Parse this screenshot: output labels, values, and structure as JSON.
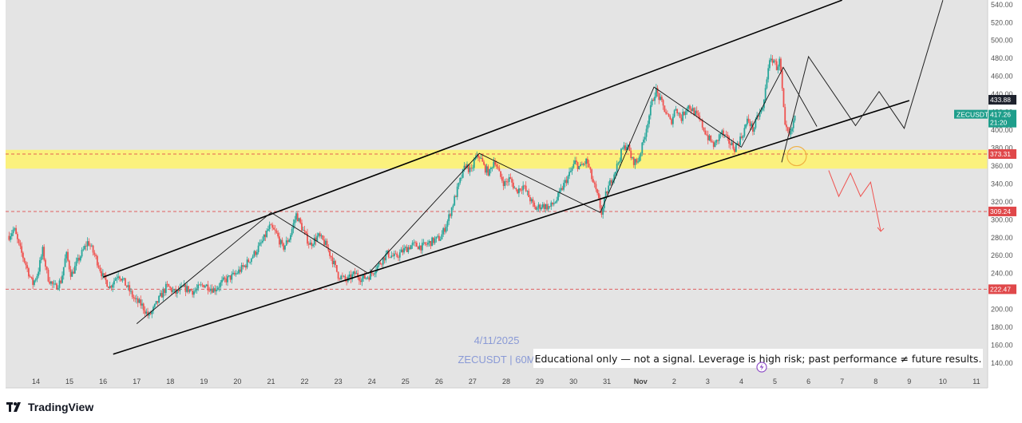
{
  "chart_data": {
    "type": "candlestick",
    "symbol": "ZECUSDT",
    "watermark": {
      "date": "4/11/2025",
      "symbol_interval": "ZECUSDT | 60M"
    },
    "disclaimer": "Educational only — not a signal. Leverage is high risk; past performance ≠ future results.",
    "x_ticks": [
      "14",
      "15",
      "16",
      "17",
      "18",
      "19",
      "20",
      "21",
      "22",
      "23",
      "24",
      "25",
      "26",
      "27",
      "28",
      "29",
      "30",
      "31",
      "Nov",
      "2",
      "3",
      "4",
      "5",
      "6",
      "7",
      "8",
      "9",
      "10",
      "11"
    ],
    "y_ticks": [
      "140.00",
      "160.00",
      "180.00",
      "200.00",
      "220.00",
      "240.00",
      "260.00",
      "280.00",
      "300.00",
      "320.00",
      "340.00",
      "360.00",
      "380.00",
      "400.00",
      "420.00",
      "440.00",
      "460.00",
      "480.00",
      "500.00",
      "520.00",
      "540.00"
    ],
    "ylim": [
      125,
      545
    ],
    "x_range_days": [
      13.2,
      42.2
    ],
    "price_series": [
      {
        "d": 13.2,
        "p": 282
      },
      {
        "d": 13.35,
        "p": 290
      },
      {
        "d": 13.5,
        "p": 270
      },
      {
        "d": 13.7,
        "p": 250
      },
      {
        "d": 13.9,
        "p": 228
      },
      {
        "d": 14.05,
        "p": 240
      },
      {
        "d": 14.2,
        "p": 266
      },
      {
        "d": 14.35,
        "p": 236
      },
      {
        "d": 14.55,
        "p": 224
      },
      {
        "d": 14.75,
        "p": 232
      },
      {
        "d": 14.9,
        "p": 262
      },
      {
        "d": 15.05,
        "p": 238
      },
      {
        "d": 15.3,
        "p": 258
      },
      {
        "d": 15.55,
        "p": 276
      },
      {
        "d": 15.8,
        "p": 256
      },
      {
        "d": 16.0,
        "p": 236
      },
      {
        "d": 16.2,
        "p": 225
      },
      {
        "d": 16.45,
        "p": 240
      },
      {
        "d": 16.7,
        "p": 226
      },
      {
        "d": 16.95,
        "p": 210
      },
      {
        "d": 17.15,
        "p": 205
      },
      {
        "d": 17.35,
        "p": 192
      },
      {
        "d": 17.5,
        "p": 200
      },
      {
        "d": 17.7,
        "p": 214
      },
      {
        "d": 17.9,
        "p": 226
      },
      {
        "d": 18.15,
        "p": 218
      },
      {
        "d": 18.4,
        "p": 224
      },
      {
        "d": 18.7,
        "p": 220
      },
      {
        "d": 19.0,
        "p": 228
      },
      {
        "d": 19.3,
        "p": 222
      },
      {
        "d": 19.6,
        "p": 232
      },
      {
        "d": 19.9,
        "p": 238
      },
      {
        "d": 20.2,
        "p": 248
      },
      {
        "d": 20.5,
        "p": 262
      },
      {
        "d": 20.75,
        "p": 276
      },
      {
        "d": 20.95,
        "p": 292
      },
      {
        "d": 21.15,
        "p": 285
      },
      {
        "d": 21.35,
        "p": 268
      },
      {
        "d": 21.55,
        "p": 280
      },
      {
        "d": 21.75,
        "p": 306
      },
      {
        "d": 21.95,
        "p": 288
      },
      {
        "d": 22.15,
        "p": 272
      },
      {
        "d": 22.4,
        "p": 282
      },
      {
        "d": 22.6,
        "p": 274
      },
      {
        "d": 22.8,
        "p": 258
      },
      {
        "d": 23.0,
        "p": 238
      },
      {
        "d": 23.25,
        "p": 232
      },
      {
        "d": 23.5,
        "p": 240
      },
      {
        "d": 23.7,
        "p": 234
      },
      {
        "d": 23.95,
        "p": 238
      },
      {
        "d": 24.2,
        "p": 250
      },
      {
        "d": 24.45,
        "p": 262
      },
      {
        "d": 24.7,
        "p": 258
      },
      {
        "d": 24.95,
        "p": 266
      },
      {
        "d": 25.2,
        "p": 272
      },
      {
        "d": 25.5,
        "p": 270
      },
      {
        "d": 25.8,
        "p": 276
      },
      {
        "d": 26.05,
        "p": 280
      },
      {
        "d": 26.25,
        "p": 298
      },
      {
        "d": 26.45,
        "p": 322
      },
      {
        "d": 26.65,
        "p": 346
      },
      {
        "d": 26.8,
        "p": 362
      },
      {
        "d": 26.95,
        "p": 352
      },
      {
        "d": 27.05,
        "p": 366
      },
      {
        "d": 27.2,
        "p": 372
      },
      {
        "d": 27.35,
        "p": 358
      },
      {
        "d": 27.5,
        "p": 352
      },
      {
        "d": 27.65,
        "p": 368
      },
      {
        "d": 27.8,
        "p": 350
      },
      {
        "d": 27.95,
        "p": 340
      },
      {
        "d": 28.1,
        "p": 346
      },
      {
        "d": 28.3,
        "p": 332
      },
      {
        "d": 28.5,
        "p": 338
      },
      {
        "d": 28.7,
        "p": 324
      },
      {
        "d": 28.85,
        "p": 312
      },
      {
        "d": 29.05,
        "p": 316
      },
      {
        "d": 29.3,
        "p": 314
      },
      {
        "d": 29.5,
        "p": 322
      },
      {
        "d": 29.7,
        "p": 338
      },
      {
        "d": 29.9,
        "p": 352
      },
      {
        "d": 30.05,
        "p": 364
      },
      {
        "d": 30.2,
        "p": 358
      },
      {
        "d": 30.4,
        "p": 366
      },
      {
        "d": 30.55,
        "p": 346
      },
      {
        "d": 30.75,
        "p": 322
      },
      {
        "d": 30.85,
        "p": 306
      },
      {
        "d": 30.95,
        "p": 326
      },
      {
        "d": 31.1,
        "p": 342
      },
      {
        "d": 31.3,
        "p": 360
      },
      {
        "d": 31.45,
        "p": 378
      },
      {
        "d": 31.6,
        "p": 384
      },
      {
        "d": 31.75,
        "p": 366
      },
      {
        "d": 31.9,
        "p": 364
      },
      {
        "d": 32.05,
        "p": 382
      },
      {
        "d": 32.2,
        "p": 408
      },
      {
        "d": 32.35,
        "p": 432
      },
      {
        "d": 32.45,
        "p": 445
      },
      {
        "d": 32.6,
        "p": 432
      },
      {
        "d": 32.75,
        "p": 420
      },
      {
        "d": 32.9,
        "p": 408
      },
      {
        "d": 33.05,
        "p": 426
      },
      {
        "d": 33.2,
        "p": 412
      },
      {
        "d": 33.4,
        "p": 428
      },
      {
        "d": 33.6,
        "p": 420
      },
      {
        "d": 33.8,
        "p": 408
      },
      {
        "d": 34.0,
        "p": 392
      },
      {
        "d": 34.2,
        "p": 382
      },
      {
        "d": 34.4,
        "p": 398
      },
      {
        "d": 34.6,
        "p": 388
      },
      {
        "d": 34.8,
        "p": 380
      },
      {
        "d": 35.0,
        "p": 392
      },
      {
        "d": 35.2,
        "p": 412
      },
      {
        "d": 35.35,
        "p": 400
      },
      {
        "d": 35.5,
        "p": 416
      },
      {
        "d": 35.65,
        "p": 424
      },
      {
        "d": 35.8,
        "p": 472
      },
      {
        "d": 35.95,
        "p": 480
      },
      {
        "d": 36.05,
        "p": 470
      },
      {
        "d": 36.15,
        "p": 478
      },
      {
        "d": 36.3,
        "p": 402
      },
      {
        "d": 36.45,
        "p": 392
      },
      {
        "d": 36.6,
        "p": 417
      }
    ],
    "candle_style": {
      "up_color": "#26a69a",
      "down_color": "#ef5350"
    },
    "horizontal_levels": [
      {
        "value": 433.88,
        "label": "433.88",
        "color": "#1e222d",
        "line": "none"
      },
      {
        "value": 373.31,
        "label": "373.31",
        "color": "#e0484a",
        "line": "dashed"
      },
      {
        "value": 309.24,
        "label": "309.24",
        "color": "#e0484a",
        "line": "dashed"
      },
      {
        "value": 222.47,
        "label": "222.47",
        "color": "#e0484a",
        "line": "dashed"
      }
    ],
    "last_price": {
      "symbol": "ZECUSDT",
      "value": "417.26",
      "countdown": "21:20",
      "color": "#1e9e8b"
    },
    "support_zone": {
      "from": 357,
      "to": 378,
      "color": "#fff36b"
    },
    "channel_lines": [
      {
        "x1": 16.0,
        "y1": 236,
        "x2": 38.0,
        "y2": 545
      },
      {
        "x1": 16.3,
        "y1": 150,
        "x2": 40.0,
        "y2": 433
      }
    ],
    "wave_path": [
      {
        "d": 17.0,
        "p": 184
      },
      {
        "d": 21.0,
        "p": 308
      },
      {
        "d": 23.9,
        "p": 240
      },
      {
        "d": 27.2,
        "p": 374
      },
      {
        "d": 30.8,
        "p": 308
      },
      {
        "d": 32.4,
        "p": 448
      },
      {
        "d": 35.0,
        "p": 381
      },
      {
        "d": 36.25,
        "p": 470
      },
      {
        "d": 37.25,
        "p": 404
      }
    ],
    "forecast_up": [
      {
        "d": 36.2,
        "p": 364
      },
      {
        "d": 37.0,
        "p": 482
      },
      {
        "d": 38.4,
        "p": 405
      },
      {
        "d": 39.1,
        "p": 443
      },
      {
        "d": 39.85,
        "p": 402
      },
      {
        "d": 41.0,
        "p": 545
      }
    ],
    "forecast_down": [
      {
        "d": 37.6,
        "p": 355
      },
      {
        "d": 37.9,
        "p": 326
      },
      {
        "d": 38.25,
        "p": 352
      },
      {
        "d": 38.55,
        "p": 326
      },
      {
        "d": 38.85,
        "p": 342
      },
      {
        "d": 39.15,
        "p": 287
      }
    ]
  },
  "footer": {
    "brand": "TradingView"
  },
  "colors": {
    "plot_background": "#e4e4e4",
    "axis_background": "#ffffff",
    "channel": "#000000",
    "forecast_up": "#222222",
    "forecast_down": "#ef5350"
  }
}
